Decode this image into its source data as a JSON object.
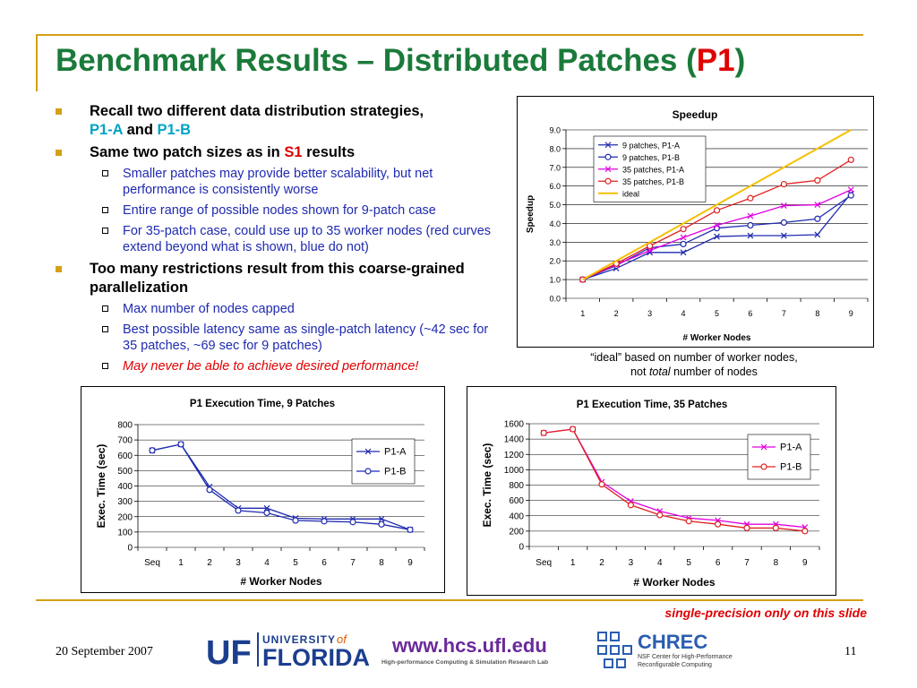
{
  "slide": {
    "title_main": "Benchmark Results – Distributed Patches (",
    "title_highlight": "P1",
    "title_end": ")",
    "date": "20 September 2007",
    "page_number": "11",
    "note": "single-precision only on this slide",
    "caption_line1": "“ideal” based on number of worker nodes,",
    "caption_line2_pre": "not ",
    "caption_line2_em": "total",
    "caption_line2_post": " number of nodes"
  },
  "bullets": {
    "b1_text": "Recall two different data distribution strategies,",
    "b1_a": "P1-A",
    "b1_and": " and ",
    "b1_b": "P1-B",
    "b2_pre": "Same two patch sizes as in ",
    "b2_hl": "S1",
    "b2_post": " results",
    "b2_sub1": "Smaller patches may provide better scalability, but net performance is consistently worse",
    "b2_sub2": "Entire range of possible nodes shown for 9-patch case",
    "b2_sub3": "For 35-patch case, could use up to 35 worker nodes (red curves extend beyond what is shown, blue do not)",
    "b3_text": "Too many restrictions result from this coarse-grained parallelization",
    "b3_sub1": "Max number of nodes capped",
    "b3_sub2": "Best possible latency same as single-patch latency (~42 sec for 35 patches, ~69 sec for 9 patches)",
    "b3_sub3": "May never be able to achieve desired performance!"
  },
  "logos": {
    "uf_mark": "UF",
    "uf_university": "UNIVERSITY",
    "uf_of": "of",
    "uf_florida": "FLORIDA",
    "hcs_url": "www.hcs.ufl.edu",
    "hcs_sub": "High-performance Computing & Simulation Research Lab",
    "chrec": "CHREC",
    "chrec_sub1": "NSF Center for High-Performance",
    "chrec_sub2": "Reconfigurable Computing"
  },
  "colors": {
    "title_green": "#1a7a3a",
    "accent_red": "#e00000",
    "bullet_gold": "#d4a017",
    "sub_blue": "#1f2ab0",
    "highlight_cyan": "#00a3c4",
    "series_blue": "#1f2ab0",
    "series_magenta": "#e000e0",
    "series_red": "#e02020",
    "series_gold": "#f5c000"
  },
  "chart_data": [
    {
      "type": "line",
      "title": "Speedup",
      "xlabel": "# Worker Nodes",
      "ylabel": "Speedup",
      "ylim": [
        0,
        9
      ],
      "yticks": [
        "0.0",
        "1.0",
        "2.0",
        "3.0",
        "4.0",
        "5.0",
        "6.0",
        "7.0",
        "8.0",
        "9.0"
      ],
      "categories": [
        "1",
        "2",
        "3",
        "4",
        "5",
        "6",
        "7",
        "8",
        "9"
      ],
      "grid": true,
      "legend": "top-left inside",
      "series": [
        {
          "name": "9 patches, P1-A",
          "marker": "x",
          "color": "#1f2ab0",
          "values": [
            1.0,
            1.6,
            2.45,
            2.45,
            3.3,
            3.35,
            3.35,
            3.4,
            5.6
          ]
        },
        {
          "name": "9 patches, P1-B",
          "marker": "circle",
          "color": "#1f2ab0",
          "values": [
            1.0,
            1.75,
            2.7,
            2.9,
            3.75,
            3.9,
            4.05,
            4.25,
            5.5
          ]
        },
        {
          "name": "35 patches, P1-A",
          "marker": "x",
          "color": "#e000e0",
          "values": [
            1.0,
            1.8,
            2.55,
            3.25,
            3.9,
            4.4,
            4.95,
            5.0,
            5.8
          ]
        },
        {
          "name": "35 patches, P1-B",
          "marker": "circle",
          "color": "#e02020",
          "values": [
            1.0,
            1.85,
            2.8,
            3.7,
            4.7,
            5.35,
            6.1,
            6.3,
            7.4
          ]
        },
        {
          "name": "ideal",
          "marker": "none",
          "color": "#f5c000",
          "values": [
            1,
            2,
            3,
            4,
            5,
            6,
            7,
            8,
            9
          ]
        }
      ]
    },
    {
      "type": "line",
      "title": "P1 Execution Time, 9 Patches",
      "xlabel": "# Worker Nodes",
      "ylabel": "Exec. Time (sec)",
      "ylim": [
        0,
        800
      ],
      "yticks": [
        "0",
        "100",
        "200",
        "300",
        "400",
        "500",
        "600",
        "700",
        "800"
      ],
      "categories": [
        "Seq",
        "1",
        "2",
        "3",
        "4",
        "5",
        "6",
        "7",
        "8",
        "9"
      ],
      "grid": true,
      "legend": "right",
      "series": [
        {
          "name": "P1-A",
          "marker": "x",
          "color": "#1f2ab0",
          "values": [
            632,
            672,
            395,
            255,
            255,
            190,
            185,
            185,
            185,
            115
          ]
        },
        {
          "name": "P1-B",
          "marker": "circle",
          "color": "#1f2ab0",
          "values": [
            632,
            672,
            375,
            240,
            225,
            175,
            170,
            165,
            150,
            115
          ]
        }
      ]
    },
    {
      "type": "line",
      "title": "P1 Execution Time, 35 Patches",
      "xlabel": "# Worker Nodes",
      "ylabel": "Exec. Time (sec)",
      "ylim": [
        0,
        1600
      ],
      "yticks": [
        "0",
        "200",
        "400",
        "600",
        "800",
        "1000",
        "1200",
        "1400",
        "1600"
      ],
      "categories": [
        "Seq",
        "1",
        "2",
        "3",
        "4",
        "5",
        "6",
        "7",
        "8",
        "9"
      ],
      "grid": true,
      "legend": "right",
      "series": [
        {
          "name": "P1-A",
          "marker": "x",
          "color": "#e000e0",
          "values": [
            1480,
            1530,
            840,
            590,
            460,
            370,
            340,
            290,
            290,
            250
          ]
        },
        {
          "name": "P1-B",
          "marker": "circle",
          "color": "#e02020",
          "values": [
            1480,
            1530,
            810,
            540,
            410,
            330,
            290,
            240,
            240,
            200
          ]
        }
      ]
    }
  ]
}
